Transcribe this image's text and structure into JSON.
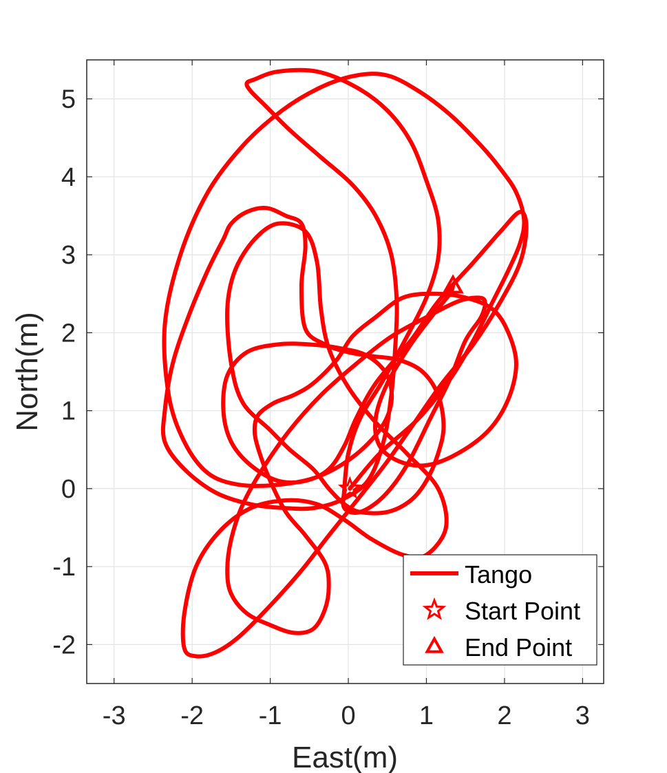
{
  "chart_data": {
    "type": "line",
    "xlabel": "East(m)",
    "ylabel": "North(m)",
    "xlim": [
      -3.35,
      3.27
    ],
    "ylim": [
      -2.5,
      5.5
    ],
    "xticks": [
      -3,
      -2,
      -1,
      0,
      1,
      2,
      3
    ],
    "yticks": [
      -2,
      -1,
      0,
      1,
      2,
      3,
      4,
      5
    ],
    "grid": true,
    "legend_position": "bottom-right",
    "line_color": "#ff0000",
    "series": [
      {
        "name": "Tango",
        "x": [
          0.02,
          0.4,
          0.9,
          1.3,
          1.6,
          1.85,
          2.05,
          2.2,
          2.25,
          2.15,
          1.95,
          1.7,
          1.3,
          0.9,
          0.5,
          0.1,
          -0.35,
          -0.85,
          -1.35,
          -1.8,
          -2.15,
          -2.35,
          -2.3,
          -2.1,
          -1.8,
          -1.4,
          -0.9,
          -0.4,
          0.05,
          0.4,
          0.55,
          0.5,
          0.25,
          -0.1,
          -0.5,
          -0.9,
          -1.3,
          -1.55,
          -1.6,
          -1.5,
          -1.25,
          -0.9,
          -0.55,
          -0.25,
          -0.05,
          0.1,
          0.35,
          0.8,
          1.15,
          1.6,
          1.95,
          2.2,
          2.28,
          2.2,
          1.95,
          1.6,
          1.2,
          0.85,
          0.5,
          0.15,
          -0.25,
          -0.6,
          -1.0,
          -1.4,
          -1.7,
          -1.95,
          -2.1,
          -2.1,
          -1.95,
          -1.65,
          -1.25,
          -0.8,
          -0.4,
          -0.05,
          0.3,
          0.7,
          1.0,
          1.25,
          1.15,
          0.75,
          0.35,
          0.0,
          -0.25,
          -0.35,
          -0.4,
          -0.55,
          -0.9,
          -1.2,
          -1.45,
          -1.55,
          -1.5,
          -1.35,
          -1.0,
          -0.75,
          -0.45,
          -0.25,
          -0.05,
          0.15,
          0.5,
          0.8,
          1.0,
          1.15,
          1.22,
          1.15,
          0.95,
          0.65,
          0.3,
          0.0,
          -0.3,
          -0.55,
          -0.6,
          -0.55,
          -0.6,
          -0.8,
          -1.05,
          -1.3,
          -1.5,
          -1.6,
          -1.8,
          -2.05,
          -2.25,
          -2.35,
          -2.35,
          -2.1,
          -1.7,
          -1.25,
          -0.8,
          -0.45,
          -0.1,
          0.25,
          0.45,
          0.55,
          0.6,
          0.62,
          0.55,
          0.35,
          0.05,
          -0.35,
          -0.75,
          -1.05,
          -1.25,
          -1.3,
          -1.2,
          -0.9,
          -0.4,
          0.1,
          0.5,
          0.8,
          1.0,
          1.15,
          1.15,
          1.0,
          0.75,
          0.45,
          0.15,
          0.0,
          -0.05,
          -0.05,
          0.15,
          0.45,
          0.75,
          1.05,
          1.3,
          1.5,
          1.7,
          1.75,
          1.65,
          1.4,
          1.0,
          0.55,
          0.1,
          -0.35,
          -0.75,
          -1.1,
          -1.35,
          -1.5,
          -1.55,
          -1.5,
          -1.3,
          -1.0,
          -0.7,
          -0.45,
          -0.3,
          -0.25,
          -0.3,
          -0.55,
          -0.8,
          -1.0,
          -1.15,
          -1.2,
          -1.15,
          -0.95,
          -0.7,
          -0.45,
          -0.15,
          0.05,
          0.35,
          0.7,
          1.1,
          1.5,
          1.85,
          2.05,
          2.15,
          2.05,
          1.8,
          1.4,
          1.0,
          0.65,
          0.4,
          0.35,
          0.5,
          0.8,
          1.1,
          1.3,
          1.34
        ],
        "y": [
          0.0,
          0.45,
          0.9,
          1.4,
          1.9,
          2.4,
          2.8,
          3.15,
          3.45,
          3.8,
          4.1,
          4.4,
          4.8,
          5.1,
          5.3,
          5.3,
          5.15,
          4.85,
          4.4,
          3.8,
          3.0,
          2.1,
          1.2,
          0.6,
          0.2,
          0.05,
          0.05,
          0.15,
          0.4,
          0.75,
          1.1,
          1.45,
          1.7,
          1.8,
          1.85,
          1.85,
          1.75,
          1.45,
          1.0,
          0.6,
          0.3,
          0.1,
          0.1,
          0.25,
          0.55,
          0.9,
          1.35,
          1.9,
          2.4,
          2.9,
          3.3,
          3.55,
          3.35,
          2.9,
          2.4,
          1.85,
          1.35,
          0.85,
          0.35,
          -0.1,
          -0.6,
          -1.05,
          -1.5,
          -1.9,
          -2.1,
          -2.15,
          -2.05,
          -1.6,
          -1.0,
          -0.55,
          -0.25,
          -0.15,
          -0.2,
          -0.4,
          -0.65,
          -0.85,
          -0.85,
          -0.5,
          0.0,
          0.45,
          0.85,
          1.3,
          1.8,
          2.3,
          2.9,
          3.3,
          3.4,
          3.2,
          2.8,
          2.3,
          1.6,
          1.1,
          0.75,
          0.5,
          0.25,
          0.0,
          -0.2,
          -0.3,
          -0.3,
          -0.15,
          0.1,
          0.45,
          0.8,
          1.2,
          1.5,
          1.65,
          1.7,
          1.75,
          1.85,
          2.05,
          2.6,
          3.1,
          3.4,
          3.5,
          3.6,
          3.55,
          3.4,
          3.2,
          2.8,
          2.2,
          1.6,
          1.0,
          0.6,
          0.25,
          -0.05,
          -0.2,
          -0.25,
          -0.25,
          -0.15,
          0.1,
          0.6,
          1.2,
          1.8,
          2.4,
          3.0,
          3.5,
          3.9,
          4.25,
          4.6,
          4.9,
          5.1,
          5.2,
          5.25,
          5.35,
          5.35,
          5.15,
          4.85,
          4.45,
          3.95,
          3.45,
          2.95,
          2.45,
          1.95,
          1.4,
          0.9,
          0.45,
          0.0,
          -0.25,
          -0.3,
          -0.1,
          0.3,
          0.9,
          1.4,
          1.9,
          2.2,
          2.4,
          2.45,
          2.4,
          2.2,
          1.95,
          1.6,
          1.2,
          0.75,
          0.25,
          -0.2,
          -0.65,
          -1.05,
          -1.35,
          -1.6,
          -1.75,
          -1.85,
          -1.8,
          -1.55,
          -1.25,
          -0.95,
          -0.6,
          -0.3,
          0.1,
          0.5,
          0.75,
          0.95,
          1.1,
          1.2,
          1.35,
          1.65,
          1.95,
          2.2,
          2.45,
          2.5,
          2.45,
          2.3,
          2.0,
          1.6,
          1.15,
          0.75,
          0.45,
          0.3,
          0.35,
          0.55,
          0.9,
          1.35,
          1.85,
          2.25,
          2.5,
          2.6
        ],
        "color": "#ff0000"
      }
    ],
    "markers": [
      {
        "name": "Start Point",
        "symbol": "star",
        "x": 0.02,
        "y": 0.0
      },
      {
        "name": "End Point",
        "symbol": "triangle",
        "x": 1.34,
        "y": 2.6
      }
    ]
  }
}
